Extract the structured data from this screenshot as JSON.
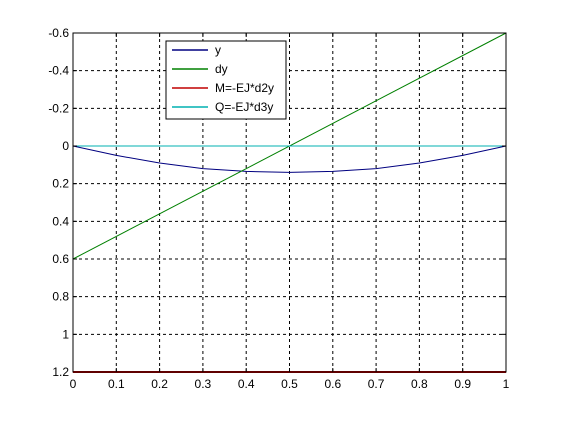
{
  "chart_data": {
    "type": "line",
    "y_axis_reversed": true,
    "xlim": [
      0,
      1
    ],
    "ylim": [
      -0.6,
      1.2
    ],
    "grid": true,
    "legend_position": "top-left",
    "x_ticks": [
      0,
      0.1,
      0.2,
      0.3,
      0.4,
      0.5,
      0.6,
      0.7,
      0.8,
      0.9,
      1
    ],
    "x_tick_labels": [
      "0",
      "0.1",
      "0.2",
      "0.3",
      "0.4",
      "0.5",
      "0.6",
      "0.7",
      "0.8",
      "0.9",
      "1"
    ],
    "y_ticks": [
      -0.6,
      -0.4,
      -0.2,
      0,
      0.2,
      0.4,
      0.6,
      0.8,
      1,
      1.2
    ],
    "y_tick_labels": [
      "-0.6",
      "-0.4",
      "-0.2",
      "0",
      "0.2",
      "0.4",
      "0.6",
      "0.8",
      "1",
      "1.2"
    ],
    "series": [
      {
        "name": "y",
        "color": "#000080",
        "x": [
          0,
          0.1,
          0.2,
          0.3,
          0.4,
          0.5,
          0.6,
          0.7,
          0.8,
          0.9,
          1
        ],
        "y": [
          0,
          0.05,
          0.09,
          0.12,
          0.135,
          0.14,
          0.135,
          0.12,
          0.09,
          0.05,
          0
        ]
      },
      {
        "name": "dy",
        "color": "#008000",
        "x": [
          0,
          1
        ],
        "y": [
          0.6,
          -0.6
        ]
      },
      {
        "name": "M=-EJ*d2y",
        "color": "#c00000",
        "x": [
          0,
          1
        ],
        "y": [
          1.2,
          1.2
        ]
      },
      {
        "name": "Q=-EJ*d3y",
        "color": "#00b0b0",
        "x": [
          0,
          1
        ],
        "y": [
          0,
          0
        ]
      }
    ]
  }
}
